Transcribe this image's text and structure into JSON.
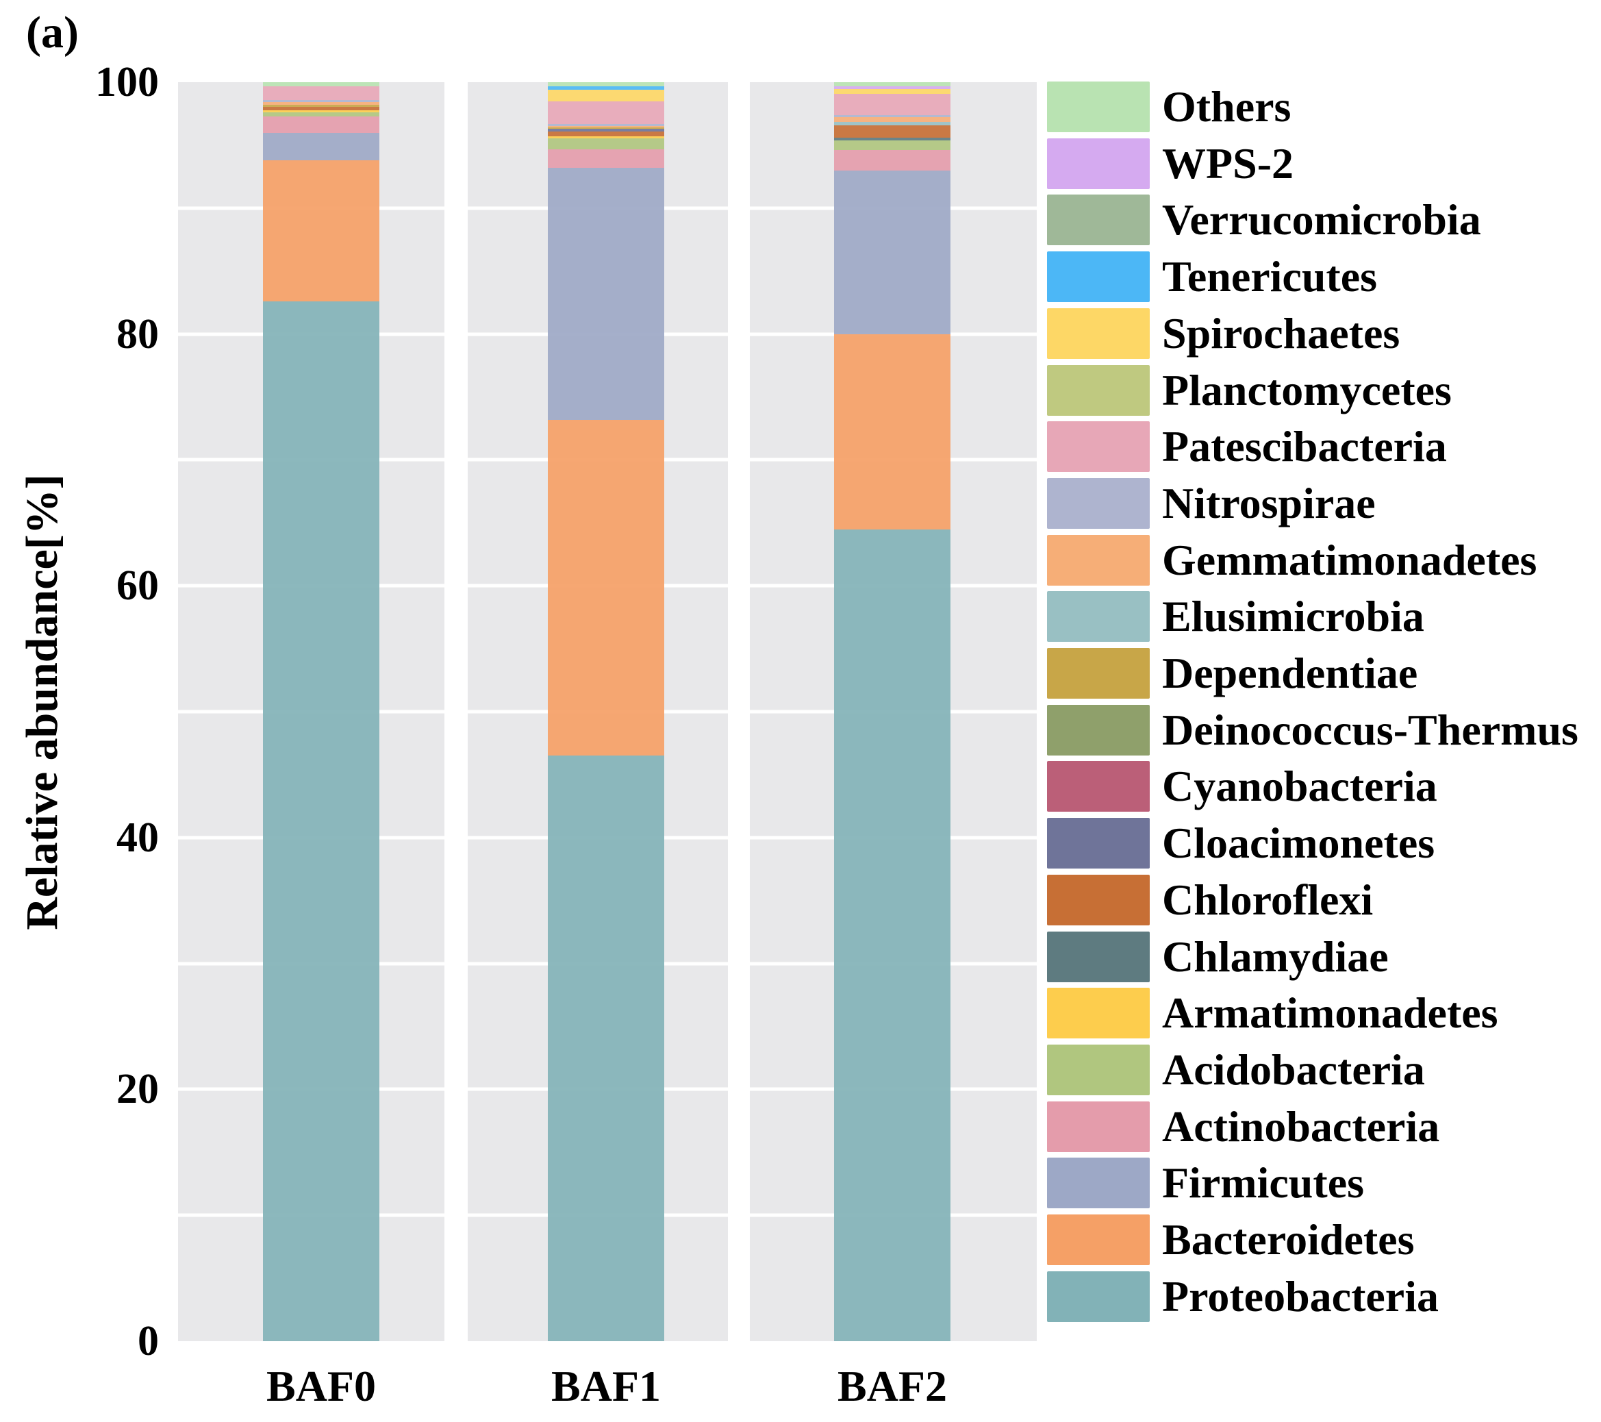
{
  "figure_label": "(a)",
  "axes": {
    "y_label": "Relative abundance[%]",
    "x_categories": [
      "BAF0",
      "BAF1",
      "BAF2"
    ],
    "y_tick_labels": [
      "0",
      "20",
      "40",
      "60",
      "80",
      "100"
    ]
  },
  "chart_data": {
    "type": "bar",
    "stacked": true,
    "title": "",
    "xlabel": "",
    "ylabel": "Relative abundance[%]",
    "ylim": [
      0,
      100
    ],
    "yticks": [
      0,
      20,
      40,
      60,
      80,
      100
    ],
    "gridline_interval": 10,
    "grid": true,
    "legend_position": "right",
    "panel_background": "#e8e8ea",
    "categories": [
      "BAF0",
      "BAF1",
      "BAF2"
    ],
    "series": [
      {
        "name": "Others",
        "color": "#b9e3b2",
        "values": [
          0.3,
          0.3,
          0.3
        ]
      },
      {
        "name": "WPS-2",
        "color": "#d5aaf0",
        "values": [
          0,
          0,
          0.25
        ]
      },
      {
        "name": "Verrucomicrobia",
        "color": "#9fb898",
        "values": [
          0,
          0,
          0
        ]
      },
      {
        "name": "Tenericutes",
        "color": "#4cb7f6",
        "values": [
          0,
          0.3,
          0
        ]
      },
      {
        "name": "Spirochaetes",
        "color": "#fdd766",
        "values": [
          0,
          0.9,
          0.35
        ]
      },
      {
        "name": "Planctomycetes",
        "color": "#bfc980",
        "values": [
          0,
          0,
          0
        ]
      },
      {
        "name": "Patescibacteria",
        "color": "#e7a7b7",
        "values": [
          1.1,
          1.8,
          1.7
        ]
      },
      {
        "name": "Nitrospirae",
        "color": "#aeb4cf",
        "values": [
          0.2,
          0.2,
          0.2
        ]
      },
      {
        "name": "Gemmatimonadetes",
        "color": "#f6ae77",
        "values": [
          0.2,
          0.1,
          0.35
        ]
      },
      {
        "name": "Elusimicrobia",
        "color": "#99c0c3",
        "values": [
          0,
          0,
          0.25
        ]
      },
      {
        "name": "Dependentiae",
        "color": "#c8a648",
        "values": [
          0.15,
          0.1,
          0
        ]
      },
      {
        "name": "Deinococcus-Thermus",
        "color": "#8fa06b",
        "values": [
          0,
          0,
          0
        ]
      },
      {
        "name": "Cyanobacteria",
        "color": "#bb5f78",
        "values": [
          0,
          0,
          0
        ]
      },
      {
        "name": "Cloacimonetes",
        "color": "#6f7499",
        "values": [
          0,
          0.2,
          0
        ]
      },
      {
        "name": "Chloroflexi",
        "color": "#c76f35",
        "values": [
          0.3,
          0.4,
          1.0
        ]
      },
      {
        "name": "Chlamydiae",
        "color": "#5e7b80",
        "values": [
          0,
          0,
          0.2
        ]
      },
      {
        "name": "Armatimonadetes",
        "color": "#fdcd4d",
        "values": [
          0.15,
          0.15,
          0
        ]
      },
      {
        "name": "Acidobacteria",
        "color": "#b0c67f",
        "values": [
          0.3,
          0.9,
          0.8
        ]
      },
      {
        "name": "Actinobacteria",
        "color": "#e49cab",
        "values": [
          1.3,
          1.45,
          1.6
        ]
      },
      {
        "name": "Firmicutes",
        "color": "#9da8c6",
        "values": [
          2.2,
          20.0,
          13.0
        ]
      },
      {
        "name": "Bacteroidetes",
        "color": "#f5a066",
        "values": [
          11.2,
          26.7,
          15.5
        ]
      },
      {
        "name": "Proteobacteria",
        "color": "#82b2b7",
        "values": [
          82.6,
          46.5,
          64.5
        ]
      }
    ]
  }
}
